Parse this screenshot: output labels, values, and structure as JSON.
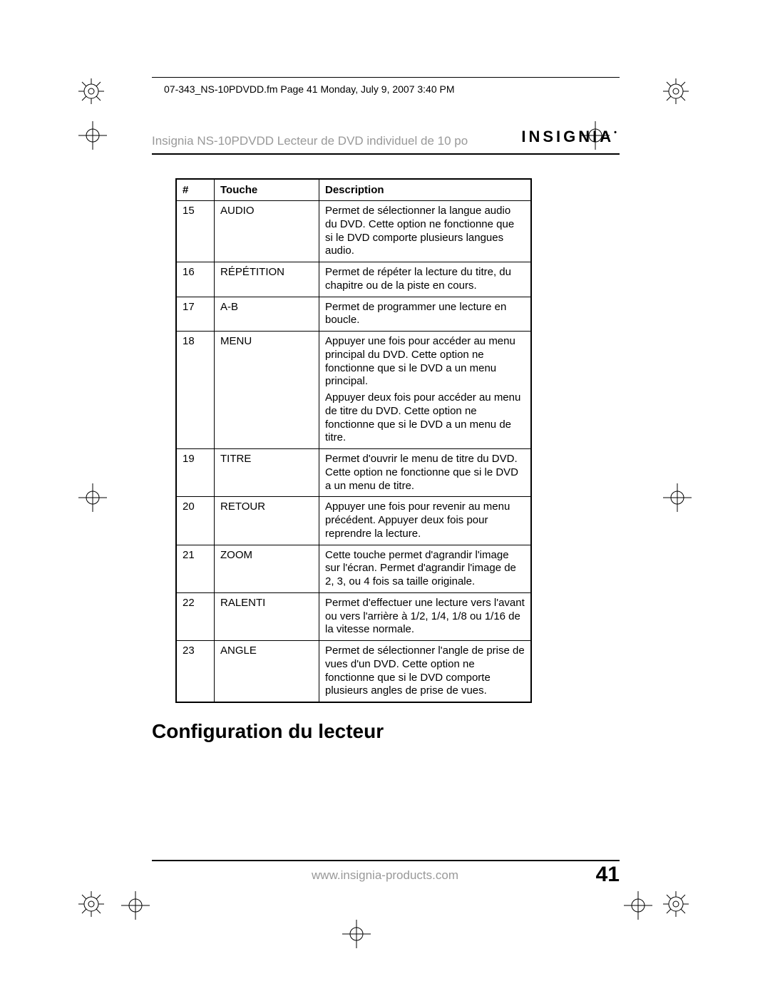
{
  "print_mark_header": "07-343_NS-10PDVDD.fm  Page 41  Monday, July 9, 2007  3:40 PM",
  "header_title": "Insignia NS-10PDVDD Lecteur de DVD individuel de 10 po",
  "logo_text": "INSIGNIA",
  "table": {
    "columns": [
      "#",
      "Touche",
      "Description"
    ],
    "rows": [
      {
        "n": "15",
        "touche": "AUDIO",
        "desc": [
          "Permet de sélectionner la langue audio du DVD. Cette option ne fonctionne que si le DVD comporte plusieurs langues audio."
        ]
      },
      {
        "n": "16",
        "touche": "RÉPÉTITION",
        "desc": [
          "Permet de répéter la lecture du titre, du chapitre ou de la piste en cours."
        ]
      },
      {
        "n": "17",
        "touche": "A-B",
        "desc": [
          "Permet de programmer une lecture en boucle."
        ]
      },
      {
        "n": "18",
        "touche": "MENU",
        "desc": [
          "Appuyer une fois pour accéder au menu principal du DVD. Cette option ne fonctionne que si le DVD a un menu principal.",
          "Appuyer deux fois pour accéder au menu de titre du DVD. Cette option ne fonctionne que si le DVD a un menu de titre."
        ]
      },
      {
        "n": "19",
        "touche": "TITRE",
        "desc": [
          "Permet d'ouvrir le menu de titre du DVD. Cette option ne fonctionne que si le DVD a un menu de titre."
        ]
      },
      {
        "n": "20",
        "touche": "RETOUR",
        "desc": [
          "Appuyer une fois pour revenir au menu précédent. Appuyer deux fois pour reprendre la lecture."
        ]
      },
      {
        "n": "21",
        "touche": "ZOOM",
        "desc": [
          "Cette touche permet d'agrandir l'image sur l'écran. Permet d'agrandir l'image de 2, 3, ou 4 fois sa taille originale."
        ]
      },
      {
        "n": "22",
        "touche": "RALENTI",
        "desc": [
          "Permet d'effectuer une lecture vers l'avant ou vers l'arrière à 1/2, 1/4, 1/8 ou 1/16 de la vitesse normale."
        ]
      },
      {
        "n": "23",
        "touche": "ANGLE",
        "desc": [
          "Permet de sélectionner l'angle de prise de vues d'un DVD. Cette option ne fonctionne que si le DVD comporte plusieurs angles de prise de vues."
        ]
      }
    ]
  },
  "section_heading": "Configuration du lecteur",
  "footer_url": "www.insignia-products.com",
  "page_number": "41"
}
